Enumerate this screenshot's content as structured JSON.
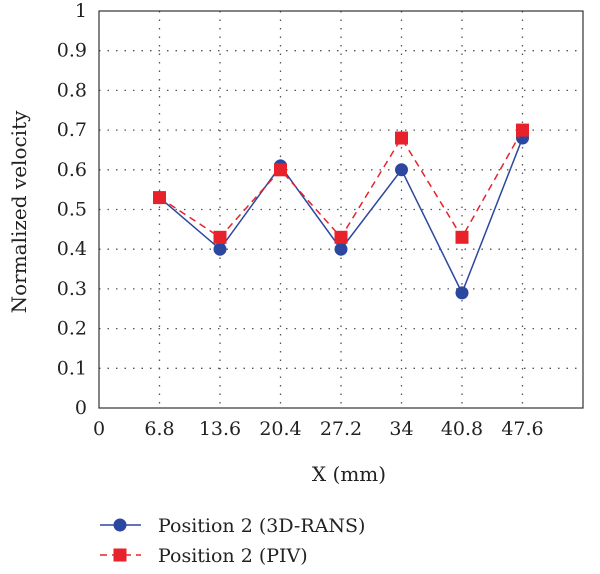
{
  "chart_data": {
    "type": "line",
    "title": "",
    "xlabel": "X (mm)",
    "ylabel": "Normalized velocity",
    "x": [
      6.8,
      13.6,
      20.4,
      27.2,
      34,
      40.8,
      47.6
    ],
    "x_ticks": [
      "0",
      "6.8",
      "13.6",
      "20.4",
      "27.2",
      "34",
      "40.8",
      "47.6"
    ],
    "y_ticks": [
      "0",
      "0.1",
      "0.2",
      "0.3",
      "0.4",
      "0.5",
      "0.6",
      "0.7",
      "0.8",
      "0.9",
      "1"
    ],
    "xlim": [
      0,
      54.4
    ],
    "ylim": [
      0,
      1
    ],
    "grid": "dotted",
    "legend_position": "bottom",
    "series": [
      {
        "name": "Position 2 (3D-RANS)",
        "values": [
          0.53,
          0.4,
          0.61,
          0.4,
          0.6,
          0.29,
          0.68
        ],
        "color": "#2b47a0",
        "marker": "circle",
        "line_style": "solid"
      },
      {
        "name": "Position 2 (PIV)",
        "values": [
          0.53,
          0.43,
          0.6,
          0.43,
          0.68,
          0.43,
          0.7
        ],
        "color": "#e8222a",
        "marker": "square",
        "line_style": "dashed"
      }
    ]
  }
}
